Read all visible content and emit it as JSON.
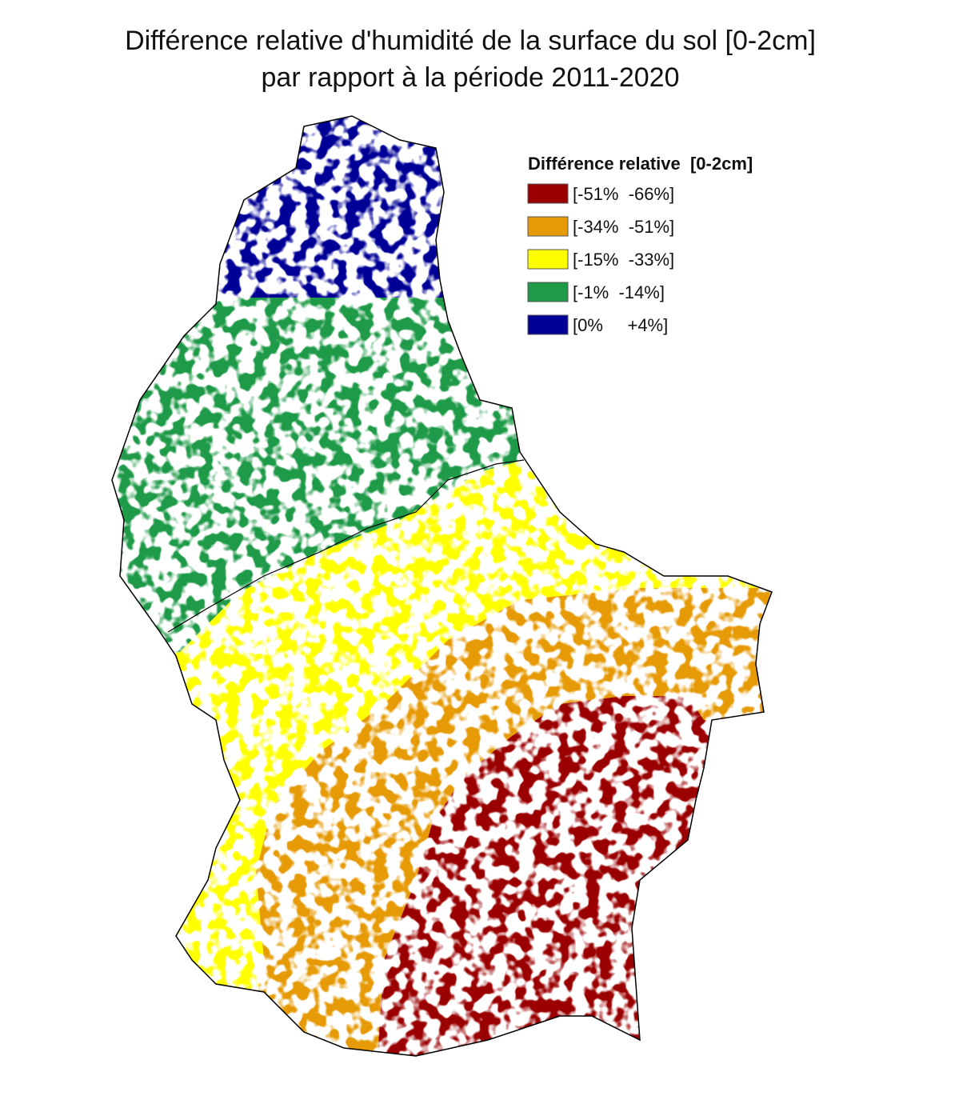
{
  "title": [
    "Différence relative d'humidité de la surface du sol [0-2cm]",
    "par rapport à la période 2011-2020"
  ],
  "legend": {
    "title": "Différence relative  [0-2cm]",
    "items": [
      {
        "label": "[-51%  -66%]",
        "color": "#9b0000"
      },
      {
        "label": "[-34%  -51%]",
        "color": "#e59a06"
      },
      {
        "label": "[-15%  -33%]",
        "color": "#ffff00"
      },
      {
        "label": "[-1%  -14%]",
        "color": "#1e9a48"
      },
      {
        "label": "[0%     +4%]",
        "color": "#000096"
      }
    ]
  }
}
